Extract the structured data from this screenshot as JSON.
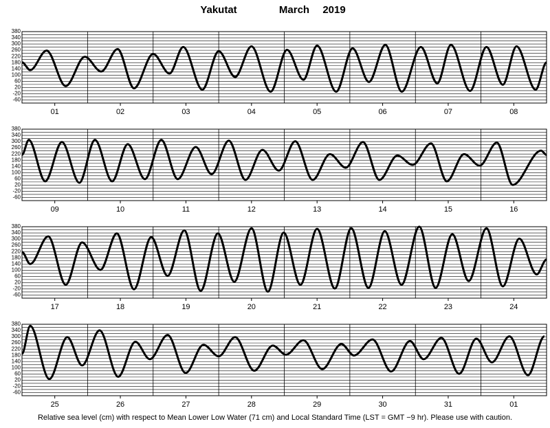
{
  "header": {
    "station": "Yakutat",
    "month": "March",
    "year": "2019"
  },
  "footer": "Relative sea level (cm) with respect to Mean Lower Low Water (71 cm) and Local Standard Time (LST = GMT −9 hr). Please use with caution.",
  "chart_data": [
    {
      "type": "line",
      "color": "#000000",
      "xlim": [
        0,
        192
      ],
      "ylim": [
        -80,
        380
      ],
      "yticks": [
        380,
        340,
        300,
        260,
        220,
        180,
        140,
        100,
        60,
        20,
        -20,
        -60
      ],
      "xticks": [
        {
          "value": 12,
          "label": "01"
        },
        {
          "value": 36,
          "label": "02"
        },
        {
          "value": 60,
          "label": "03"
        },
        {
          "value": 84,
          "label": "04"
        },
        {
          "value": 108,
          "label": "05"
        },
        {
          "value": 132,
          "label": "06"
        },
        {
          "value": 156,
          "label": "07"
        },
        {
          "value": 180,
          "label": "08"
        }
      ],
      "x": [
        0,
        3,
        9,
        16,
        23,
        29,
        35,
        41,
        48,
        54,
        59,
        66,
        72,
        78,
        84,
        91,
        97,
        103,
        108,
        115,
        121,
        127,
        133,
        139,
        146,
        152,
        157,
        164,
        170,
        176,
        181,
        188,
        192
      ],
      "values": [
        182,
        132,
        258,
        29,
        218,
        123,
        268,
        15,
        236,
        110,
        281,
        6,
        254,
        88,
        285,
        -7,
        263,
        70,
        290,
        -7,
        272,
        56,
        295,
        -7,
        281,
        47,
        295,
        -2,
        281,
        38,
        285,
        6,
        182
      ]
    },
    {
      "type": "line",
      "color": "#000000",
      "xlim": [
        0,
        192
      ],
      "ylim": [
        -80,
        380
      ],
      "yticks": [
        380,
        340,
        300,
        260,
        220,
        180,
        140,
        100,
        60,
        20,
        -20,
        -60
      ],
      "xticks": [
        {
          "value": 12,
          "label": "09"
        },
        {
          "value": 36,
          "label": "10"
        },
        {
          "value": 60,
          "label": "11"
        },
        {
          "value": 84,
          "label": "12"
        },
        {
          "value": 108,
          "label": "13"
        },
        {
          "value": 132,
          "label": "14"
        },
        {
          "value": 156,
          "label": "15"
        },
        {
          "value": 180,
          "label": "16"
        }
      ],
      "x": [
        0,
        2.5,
        8.5,
        14.6,
        21,
        26.7,
        33,
        38.7,
        45,
        51,
        57,
        63.6,
        69.4,
        75.7,
        81.8,
        88,
        94,
        100,
        106.4,
        112.7,
        118.5,
        124.8,
        130.8,
        137.4,
        143,
        149.7,
        155.5,
        161.8,
        167.5,
        173.8,
        179.6,
        190,
        192
      ],
      "values": [
        214,
        311,
        44,
        297,
        35,
        311,
        44,
        283,
        58,
        311,
        58,
        265,
        90,
        306,
        53,
        247,
        113,
        302,
        53,
        219,
        132,
        297,
        53,
        210,
        150,
        288,
        44,
        219,
        145,
        293,
        21,
        242,
        214
      ]
    },
    {
      "type": "line",
      "color": "#000000",
      "xlim": [
        0,
        192
      ],
      "ylim": [
        -80,
        380
      ],
      "yticks": [
        380,
        340,
        300,
        260,
        220,
        180,
        140,
        100,
        60,
        20,
        -20,
        -60
      ],
      "xticks": [
        {
          "value": 12,
          "label": "17"
        },
        {
          "value": 36,
          "label": "18"
        },
        {
          "value": 60,
          "label": "19"
        },
        {
          "value": 84,
          "label": "20"
        },
        {
          "value": 108,
          "label": "21"
        },
        {
          "value": 132,
          "label": "22"
        },
        {
          "value": 156,
          "label": "23"
        },
        {
          "value": 180,
          "label": "24"
        }
      ],
      "x": [
        0,
        3,
        9.6,
        16,
        22,
        28.7,
        34.7,
        41,
        47.3,
        53.3,
        59.4,
        65.4,
        71.7,
        77.7,
        84,
        90,
        95.8,
        101.9,
        108,
        114.5,
        120.5,
        126.8,
        132.8,
        138.9,
        145.4,
        151.4,
        157.5,
        163.5,
        170,
        176,
        182,
        188.4,
        192
      ],
      "values": [
        217,
        140,
        318,
        6,
        279,
        102,
        337,
        -23,
        313,
        63,
        356,
        -33,
        337,
        25,
        370,
        -38,
        342,
        6,
        366,
        -18,
        370,
        -14,
        351,
        6,
        380,
        -14,
        332,
        30,
        370,
        -4,
        303,
        73,
        169
      ]
    },
    {
      "type": "line",
      "color": "#000000",
      "xlim": [
        0,
        192
      ],
      "ylim": [
        -80,
        380
      ],
      "yticks": [
        380,
        340,
        300,
        260,
        220,
        180,
        140,
        100,
        60,
        20,
        -20,
        -60
      ],
      "xticks": [
        {
          "value": 12,
          "label": "25"
        },
        {
          "value": 36,
          "label": "26"
        },
        {
          "value": 60,
          "label": "27"
        },
        {
          "value": 84,
          "label": "28"
        },
        {
          "value": 108,
          "label": "29"
        },
        {
          "value": 132,
          "label": "30"
        },
        {
          "value": 156,
          "label": "31"
        },
        {
          "value": 180,
          "label": "01"
        }
      ],
      "x": [
        0,
        3,
        10,
        16.6,
        22,
        28.4,
        35.2,
        41.5,
        46.8,
        53.3,
        59.9,
        66.4,
        72,
        78,
        85,
        91.8,
        96.6,
        103,
        109.9,
        116.9,
        121.5,
        128.3,
        135.1,
        142,
        147,
        153.5,
        160,
        166.3,
        172,
        178.4,
        185.2,
        191.2
      ],
      "values": [
        189,
        370,
        27,
        297,
        115,
        341,
        42,
        267,
        155,
        311,
        66,
        248,
        174,
        297,
        81,
        243,
        184,
        277,
        91,
        253,
        179,
        282,
        76,
        272,
        155,
        292,
        61,
        287,
        135,
        302,
        52,
        302
      ]
    }
  ]
}
